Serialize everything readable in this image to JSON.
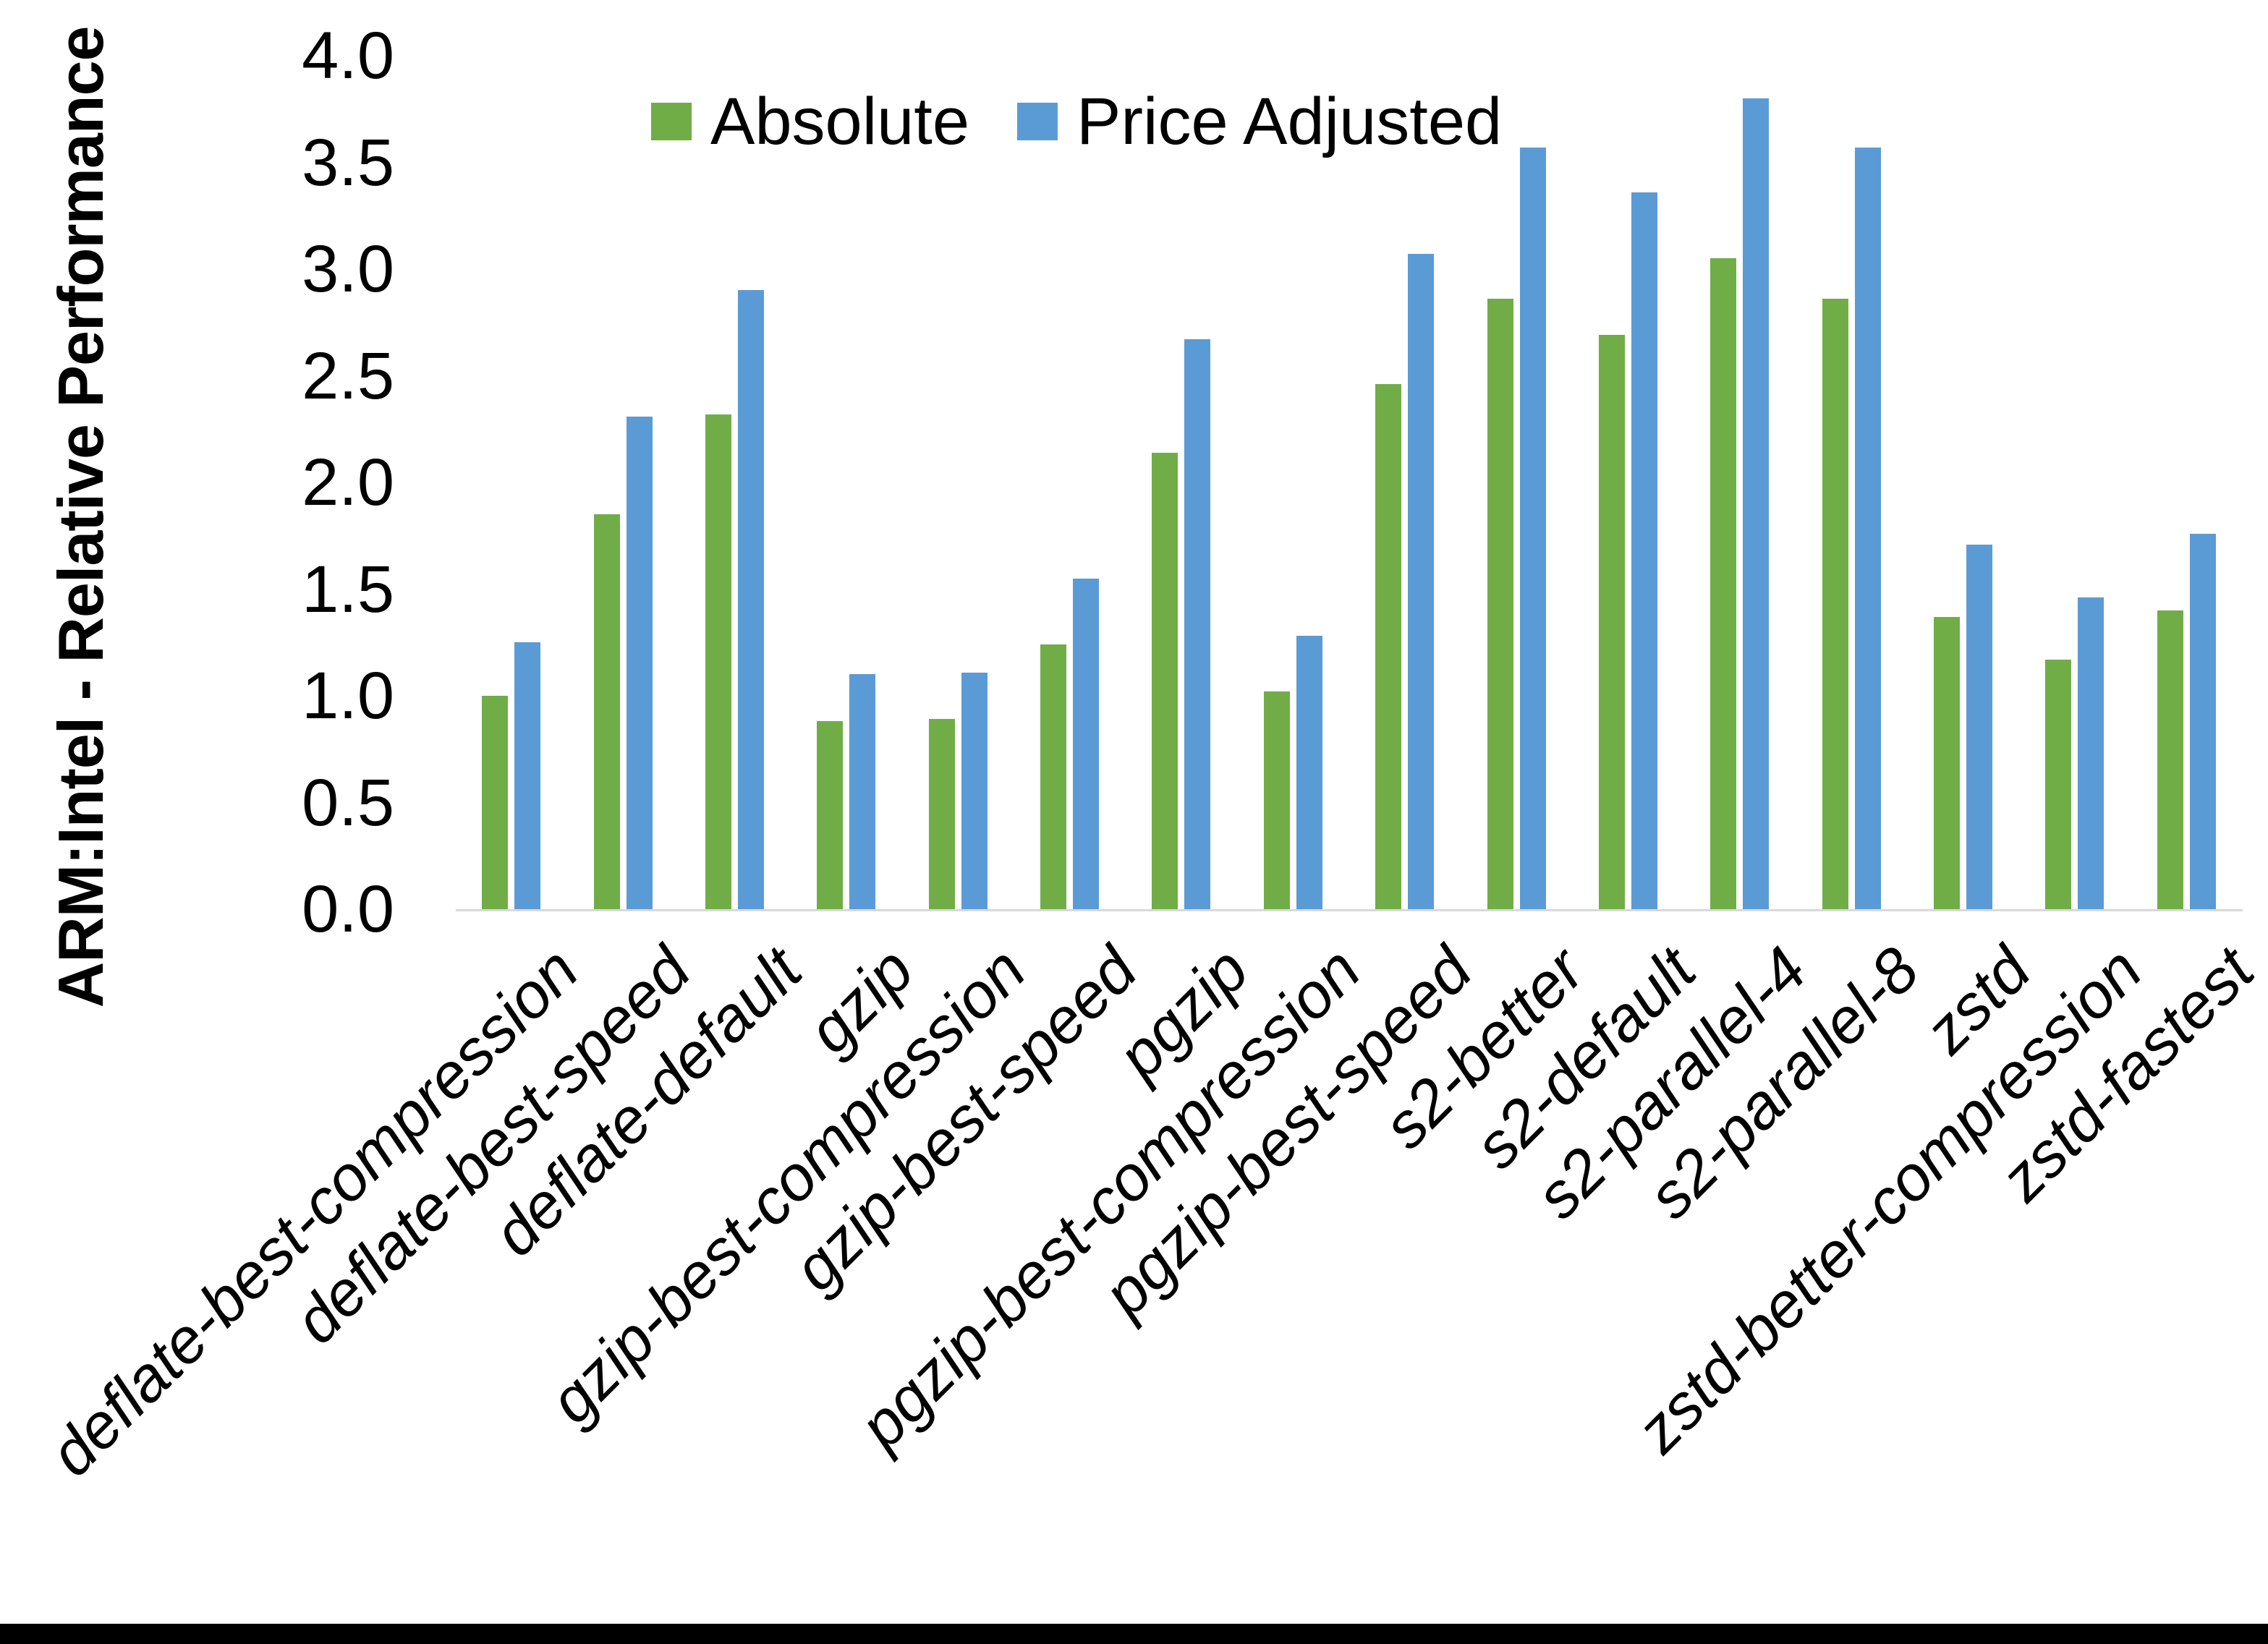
{
  "chart_data": {
    "type": "bar",
    "title": "",
    "ylabel": "ARM:Intel - Relative Performance",
    "xlabel": "",
    "ylim": [
      0,
      4
    ],
    "ytick_step": 0.5,
    "yticks": [
      "4.0",
      "3.5",
      "3.0",
      "2.5",
      "2.0",
      "1.5",
      "1.0",
      "0.5",
      "0.0"
    ],
    "grid": false,
    "legend_position": "top-center",
    "categories": [
      "deflate-best-compression",
      "deflate-best-speed",
      "deflate-default",
      "gzip",
      "gzip-best-compression",
      "gzip-best-speed",
      "pgzip",
      "pgzip-best-compression",
      "pgzip-best-speed",
      "s2-better",
      "s2-default",
      "s2-parallel-4",
      "s2-parallel-8",
      "zstd",
      "zstd-better-compression",
      "zstd-fastest"
    ],
    "series": [
      {
        "name": "Absolute",
        "color": "#70AD47",
        "values": [
          1.0,
          1.85,
          2.32,
          0.88,
          0.89,
          1.24,
          2.14,
          1.02,
          2.46,
          2.86,
          2.69,
          3.05,
          2.86,
          1.37,
          1.17,
          1.4
        ]
      },
      {
        "name": "Price Adjusted",
        "color": "#5B9BD5",
        "values": [
          1.25,
          2.31,
          2.9,
          1.1,
          1.11,
          1.55,
          2.67,
          1.28,
          3.07,
          3.57,
          3.36,
          3.8,
          3.57,
          1.71,
          1.46,
          1.76
        ]
      }
    ]
  },
  "colors": {
    "axis_line": "#D9D9D9",
    "text": "#000000",
    "bottom_border": "#000000"
  }
}
